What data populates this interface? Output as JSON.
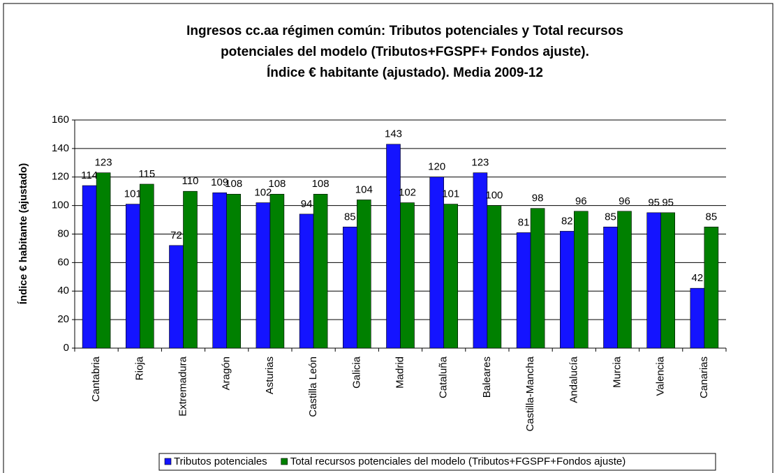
{
  "chart_data": {
    "type": "bar",
    "title": [
      "Ingresos cc.aa régimen común: Tributos potenciales y Total recursos",
      "potenciales del modelo (Tributos+FGSPF+ Fondos ajuste).",
      "Índice € habitante (ajustado). Media 2009-12"
    ],
    "y_label": "Índice € habitante (ajustado)",
    "categories": [
      "Cantabria",
      "Rioja",
      "Extremadura",
      "Aragón",
      "Asturias",
      "Castilla León",
      "Galicia",
      "Madrid",
      "Cataluña",
      "Baleares",
      "Castilla-Mancha",
      "Andalucía",
      "Murcia",
      "Valencia",
      "Canarias"
    ],
    "series": [
      {
        "name": "Tributos potenciales",
        "color": "#1414ff",
        "values": [
          114,
          101,
          72,
          109,
          102,
          94,
          85,
          143,
          120,
          123,
          81,
          82,
          85,
          95,
          42
        ]
      },
      {
        "name": "Total recursos potenciales del modelo (Tributos+FGSPF+Fondos ajuste)",
        "color": "#008000",
        "values": [
          123,
          115,
          110,
          108,
          108,
          108,
          104,
          102,
          101,
          100,
          98,
          96,
          96,
          95,
          85
        ]
      }
    ],
    "ylim": [
      0,
      160
    ],
    "yticks": [
      0,
      20,
      40,
      60,
      80,
      100,
      120,
      140,
      160
    ],
    "grid": true,
    "legend": "bottom"
  }
}
